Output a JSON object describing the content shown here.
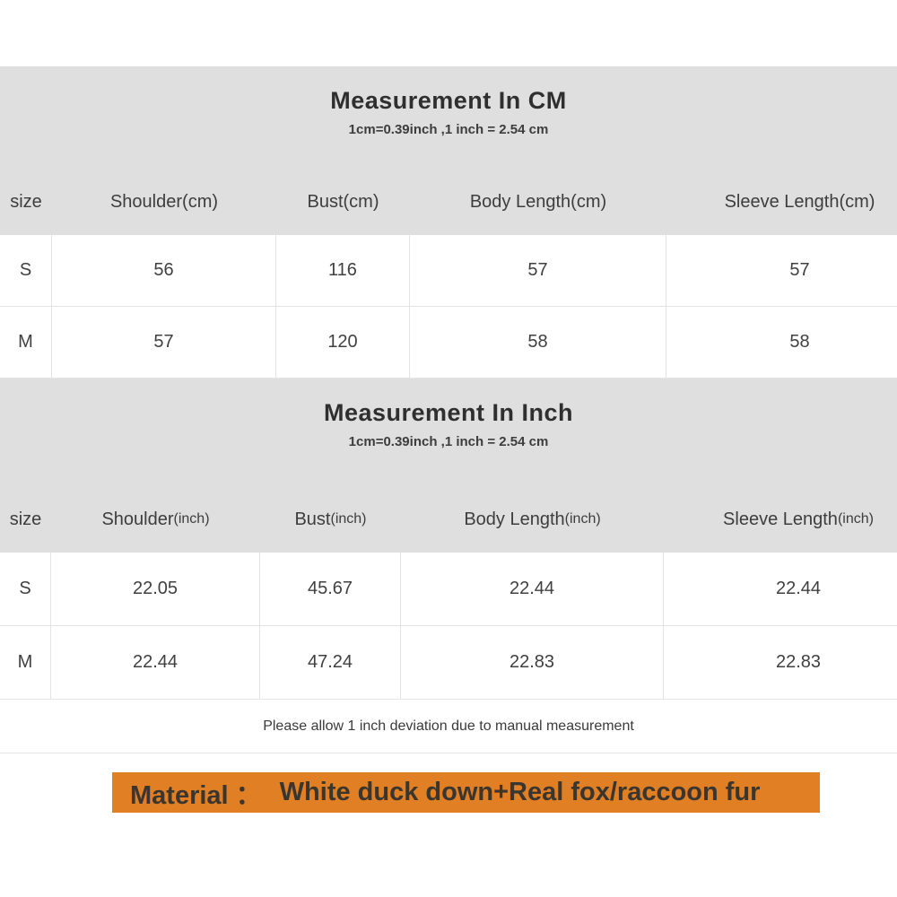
{
  "colors": {
    "band_gray": "#dfdfdf",
    "border_gray": "#e4e4e4",
    "material_orange": "#e07f23",
    "text_dark": "#2f2f2f"
  },
  "sections": {
    "cm": {
      "title": "Measurement In CM",
      "subtitle": "1cm=0.39inch ,1 inch = 2.54 cm",
      "table": {
        "headers": [
          {
            "label": "size",
            "unit": ""
          },
          {
            "label": "Shoulder",
            "unit": "(cm)"
          },
          {
            "label": "Bust",
            "unit": "(cm)"
          },
          {
            "label": "Body Length",
            "unit": "(cm)"
          },
          {
            "label": "Sleeve Length",
            "unit": "(cm)"
          }
        ],
        "rows": [
          {
            "size": "S",
            "shoulder": "56",
            "bust": "116",
            "body_length": "57",
            "sleeve_length": "57"
          },
          {
            "size": "M",
            "shoulder": "57",
            "bust": "120",
            "body_length": "58",
            "sleeve_length": "58"
          }
        ]
      }
    },
    "inch": {
      "title": "Measurement In Inch",
      "subtitle": "1cm=0.39inch ,1 inch = 2.54 cm",
      "table": {
        "headers": [
          {
            "label": "size",
            "unit": ""
          },
          {
            "label": "Shoulder",
            "unit": "(inch)"
          },
          {
            "label": "Bust",
            "unit": "(inch)"
          },
          {
            "label": "Body Length",
            "unit": "(inch)"
          },
          {
            "label": "Sleeve Length",
            "unit": "(inch)"
          }
        ],
        "rows": [
          {
            "size": "S",
            "shoulder": "22.05",
            "bust": "45.67",
            "body_length": "22.44",
            "sleeve_length": "22.44"
          },
          {
            "size": "M",
            "shoulder": "22.44",
            "bust": "47.24",
            "body_length": "22.83",
            "sleeve_length": "22.83"
          }
        ]
      }
    }
  },
  "footer": {
    "deviation_note": "Please allow 1 inch deviation due to manual measurement",
    "material_label": "Material ：",
    "material_value": "White duck down+Real fox/raccoon fur"
  }
}
